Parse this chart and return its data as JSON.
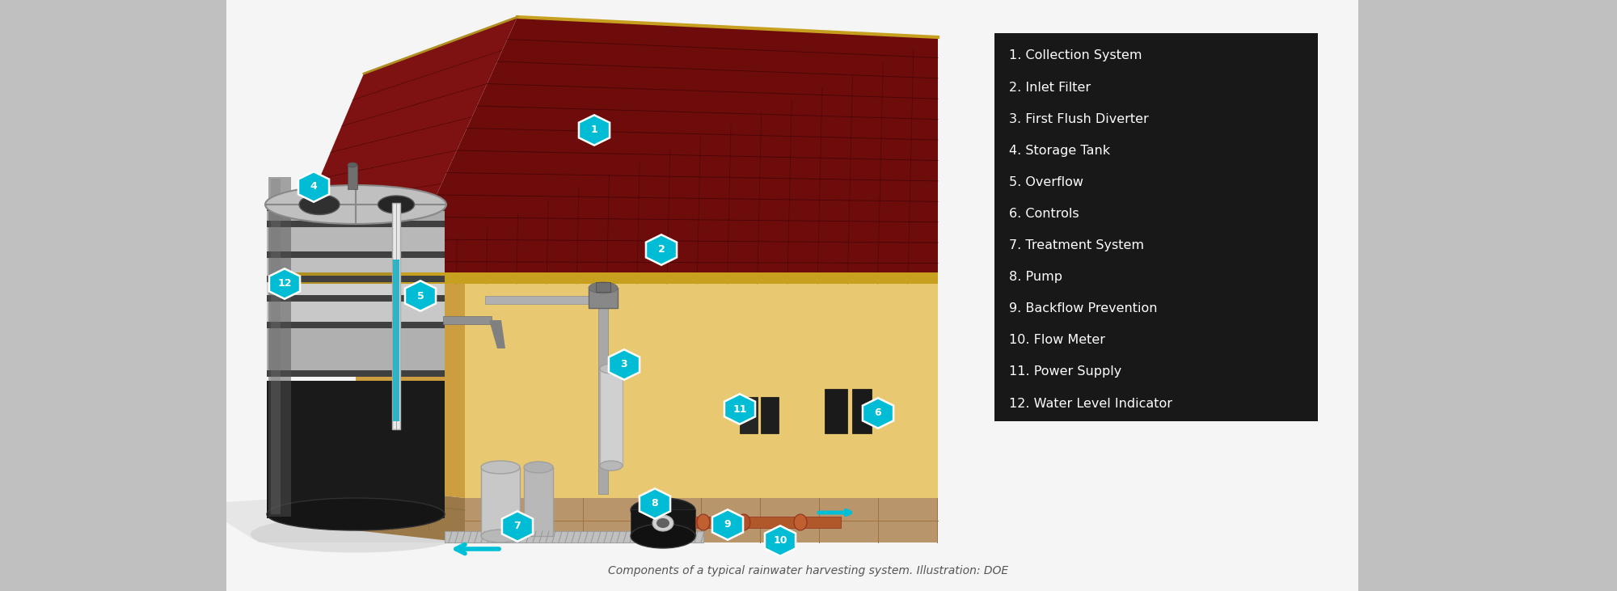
{
  "bg_outer_color": "#c8c8c8",
  "bg_center_color": "#f0f0f0",
  "legend_bg": "#111111",
  "legend_text_color": "#ffffff",
  "legend_items": [
    "1. Collection System",
    "2. Inlet Filter",
    "3. First Flush Diverter",
    "4. Storage Tank",
    "5. Overflow",
    "6. Controls",
    "7. Treatment System",
    "8. Pump",
    "9. Backflow Prevention",
    "10. Flow Meter",
    "11. Power Supply",
    "12. Water Level Indicator"
  ],
  "roof_dark": "#6b0a0a",
  "roof_mid": "#7a0e0e",
  "roof_line": "#3d0404",
  "roof_fascia": "#c8a020",
  "wall_front": "#e8c870",
  "wall_side": "#d4a848",
  "wall_dark": "#c09030",
  "foundation_front": "#b8956a",
  "foundation_side": "#a07848",
  "tank_top": "#d8d8d8",
  "tank_silver": "#b8b8b8",
  "tank_dark_ring": "#484848",
  "tank_black": "#181818",
  "badge_fill": "#00c0d8",
  "badge_outline": "#ffffff",
  "badge_text": "#ffffff",
  "pipe_color": "#909090",
  "water_color": "#00b8d4",
  "shadow_color": "#d0d0d0",
  "caption_text": "Components of a typical rainwater harvesting system. Illustration: DOE",
  "caption_color": "#555555",
  "caption_fontsize": 10
}
